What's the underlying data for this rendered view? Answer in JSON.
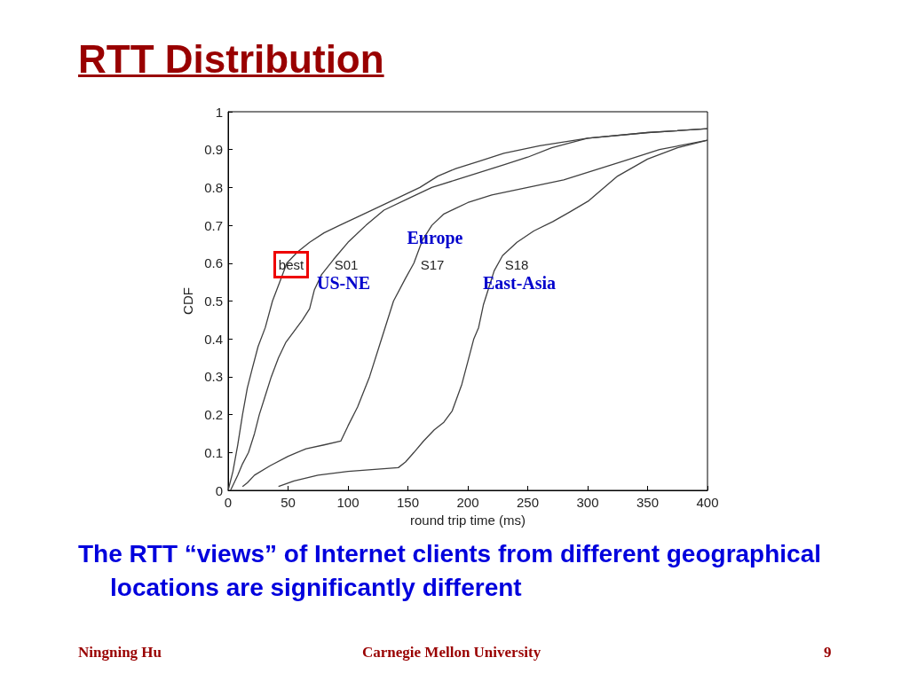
{
  "chart_data": {
    "type": "line",
    "title": "RTT Distribution",
    "xlabel": "round trip time (ms)",
    "ylabel": "CDF",
    "xlim": [
      0,
      400
    ],
    "xticks": [
      0,
      50,
      100,
      150,
      200,
      250,
      300,
      350,
      400
    ],
    "ylim": [
      0,
      1
    ],
    "yticks": [
      0,
      0.1,
      0.2,
      0.3,
      0.4,
      0.5,
      0.6,
      0.7,
      0.8,
      0.9,
      1
    ],
    "grid": false,
    "marker": "none",
    "line_style": "solid",
    "series": [
      {
        "name": "best",
        "color": "#404040",
        "x": [
          0,
          4,
          8,
          12,
          16,
          20,
          25,
          31,
          37,
          43,
          49,
          58,
          68,
          80,
          93,
          110,
          130,
          160,
          175,
          190,
          210,
          230,
          260,
          300,
          350,
          400
        ],
        "values": [
          0,
          0.05,
          0.12,
          0.2,
          0.27,
          0.32,
          0.38,
          0.43,
          0.5,
          0.55,
          0.6,
          0.63,
          0.655,
          0.68,
          0.7,
          0.725,
          0.755,
          0.8,
          0.83,
          0.85,
          0.87,
          0.89,
          0.91,
          0.93,
          0.945,
          0.955
        ]
      },
      {
        "name": "S01",
        "color": "#404040",
        "x": [
          2,
          8,
          12,
          17,
          22,
          26,
          31,
          36,
          42,
          48,
          55,
          62,
          68,
          72,
          78,
          88,
          100,
          115,
          130,
          150,
          170,
          190,
          210,
          230,
          250,
          270,
          300,
          350,
          400
        ],
        "values": [
          0,
          0.04,
          0.07,
          0.1,
          0.15,
          0.2,
          0.25,
          0.3,
          0.35,
          0.39,
          0.42,
          0.45,
          0.48,
          0.53,
          0.57,
          0.61,
          0.655,
          0.7,
          0.74,
          0.77,
          0.8,
          0.82,
          0.84,
          0.86,
          0.88,
          0.905,
          0.93,
          0.945,
          0.955
        ]
      },
      {
        "name": "S17",
        "color": "#404040",
        "x": [
          12,
          16,
          22,
          35,
          50,
          65,
          80,
          94,
          100,
          108,
          118,
          128,
          138,
          148,
          155,
          162,
          170,
          180,
          190,
          200,
          220,
          250,
          280,
          300,
          330,
          360,
          400
        ],
        "values": [
          0.01,
          0.02,
          0.04,
          0.065,
          0.09,
          0.11,
          0.12,
          0.13,
          0.17,
          0.22,
          0.3,
          0.4,
          0.5,
          0.56,
          0.6,
          0.66,
          0.7,
          0.73,
          0.745,
          0.76,
          0.78,
          0.8,
          0.82,
          0.84,
          0.87,
          0.9,
          0.925
        ]
      },
      {
        "name": "S18",
        "color": "#404040",
        "x": [
          42,
          55,
          75,
          100,
          142,
          148,
          155,
          163,
          172,
          180,
          187,
          195,
          200,
          205,
          209,
          213,
          217,
          222,
          229,
          241,
          255,
          271,
          285,
          301,
          325,
          350,
          375,
          400
        ],
        "values": [
          0.01,
          0.025,
          0.04,
          0.05,
          0.06,
          0.075,
          0.1,
          0.13,
          0.16,
          0.18,
          0.21,
          0.28,
          0.34,
          0.4,
          0.43,
          0.49,
          0.53,
          0.58,
          0.62,
          0.655,
          0.685,
          0.71,
          0.735,
          0.765,
          0.83,
          0.875,
          0.905,
          0.925
        ]
      }
    ],
    "annotations": [
      "Europe",
      "US-NE",
      "East-Asia",
      "The RTT “views” of Internet clients from different geographical locations are significantly different",
      "Ningning Hu",
      "Carnegie Mellon University",
      "9"
    ]
  }
}
